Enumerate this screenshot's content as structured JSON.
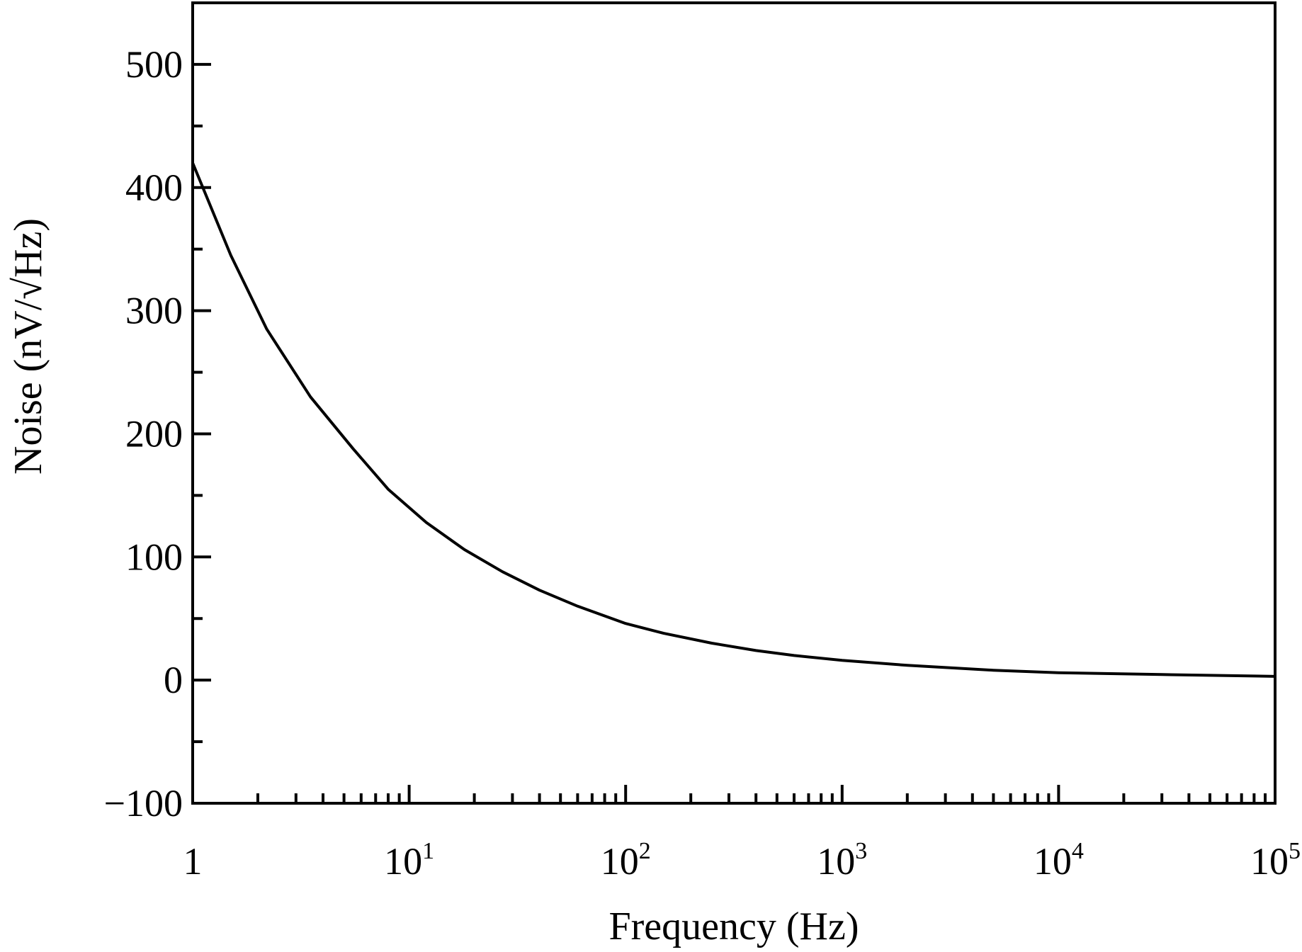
{
  "chart_data": {
    "type": "line",
    "title": "",
    "xlabel": "Frequency (Hz)",
    "ylabel": "Noise (nV/√Hz)",
    "xscale": "log",
    "xlim": [
      1,
      100000
    ],
    "ylim": [
      -100,
      550
    ],
    "x_ticks": [
      {
        "base": "1",
        "exp": ""
      },
      {
        "base": "10",
        "exp": "1"
      },
      {
        "base": "10",
        "exp": "2"
      },
      {
        "base": "10",
        "exp": "3"
      },
      {
        "base": "10",
        "exp": "4"
      },
      {
        "base": "10",
        "exp": "5"
      }
    ],
    "y_ticks": [
      "500",
      "400",
      "300",
      "200",
      "100",
      "0",
      "−100"
    ],
    "grid": false,
    "series": [
      {
        "x": [
          1,
          1.5,
          2.2,
          3.5,
          5.5,
          8,
          12,
          18,
          27,
          40,
          60,
          100,
          150,
          250,
          400,
          600,
          1000,
          2000,
          5000,
          10000,
          30000,
          100000
        ],
        "y": [
          420,
          345,
          285,
          230,
          188,
          155,
          128,
          106,
          88,
          73,
          60,
          46,
          38,
          30,
          24,
          20,
          16,
          12,
          8,
          6,
          4.5,
          3
        ]
      }
    ],
    "line_color": "#000000"
  }
}
